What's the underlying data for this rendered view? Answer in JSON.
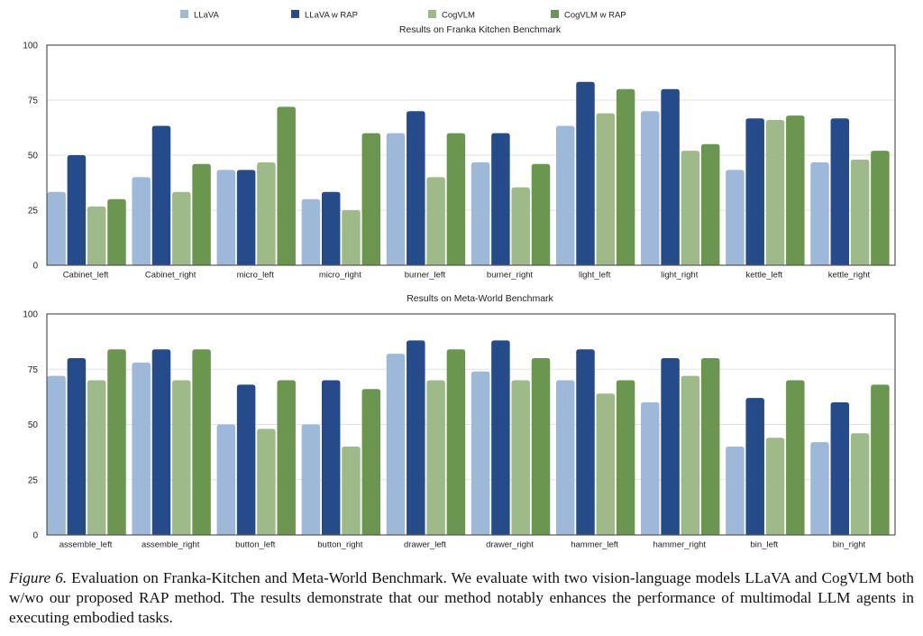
{
  "legend": [
    {
      "name": "LLaVA",
      "color": "#9db8d8"
    },
    {
      "name": "LLaVA w RAP",
      "color": "#254b8a"
    },
    {
      "name": "CogVLM",
      "color": "#9dba88"
    },
    {
      "name": "CogVLM w RAP",
      "color": "#6a9650"
    }
  ],
  "chart_data": [
    {
      "type": "bar",
      "title": "Results on Franka Kitchen Benchmark",
      "xlabel": "",
      "ylabel": "",
      "ylim": [
        0,
        100
      ],
      "yticks": [
        0,
        25,
        50,
        75,
        100
      ],
      "grid": true,
      "legend_position": "top",
      "categories": [
        "Cabinet_left",
        "Cabinet_right",
        "micro_left",
        "micro_right",
        "burner_left",
        "burner_right",
        "light_left",
        "light_right",
        "kettle_left",
        "kettle_right"
      ],
      "series": [
        {
          "name": "LLaVA",
          "values": [
            33.3,
            40,
            43.3,
            30,
            60,
            46.7,
            63.3,
            70,
            43.3,
            46.7
          ]
        },
        {
          "name": "LLaVA w RAP",
          "values": [
            50,
            63.3,
            43.3,
            33.3,
            70,
            60,
            83.3,
            80,
            66.7,
            66.7
          ]
        },
        {
          "name": "CogVLM",
          "values": [
            26.7,
            33.3,
            46.7,
            25,
            40,
            35.4,
            69,
            52,
            66,
            48
          ]
        },
        {
          "name": "CogVLM w RAP",
          "values": [
            30,
            46,
            72,
            60,
            60,
            46,
            80,
            55,
            68,
            52
          ]
        }
      ]
    },
    {
      "type": "bar",
      "title": "Results on Meta-World Benchmark",
      "xlabel": "",
      "ylabel": "",
      "ylim": [
        0,
        100
      ],
      "yticks": [
        0,
        25,
        50,
        75,
        100
      ],
      "grid": true,
      "legend_position": "top",
      "categories": [
        "assemble_left",
        "assemble_right",
        "button_left",
        "button_right",
        "drawer_left",
        "drawer_right",
        "hammer_left",
        "hammer_right",
        "bin_left",
        "bin_right"
      ],
      "series": [
        {
          "name": "LLaVA",
          "values": [
            72,
            78,
            50,
            50,
            82,
            74,
            70,
            60,
            40,
            42
          ]
        },
        {
          "name": "LLaVA w RAP",
          "values": [
            80,
            84,
            68,
            70,
            88,
            88,
            84,
            80,
            62,
            60
          ]
        },
        {
          "name": "CogVLM",
          "values": [
            70,
            70,
            48,
            40,
            70,
            70,
            64,
            72,
            44,
            46
          ]
        },
        {
          "name": "CogVLM w RAP",
          "values": [
            84,
            84,
            70,
            66,
            84,
            80,
            70,
            80,
            70,
            68
          ]
        }
      ]
    }
  ],
  "caption": {
    "label": "Figure 6.",
    "text": " Evaluation on Franka-Kitchen and Meta-World Benchmark. We evaluate with two vision-language models LLaVA and CogVLM both w/wo our proposed RAP method. The results demonstrate that our method notably enhances the performance of multimodal LLM agents in executing embodied tasks."
  }
}
